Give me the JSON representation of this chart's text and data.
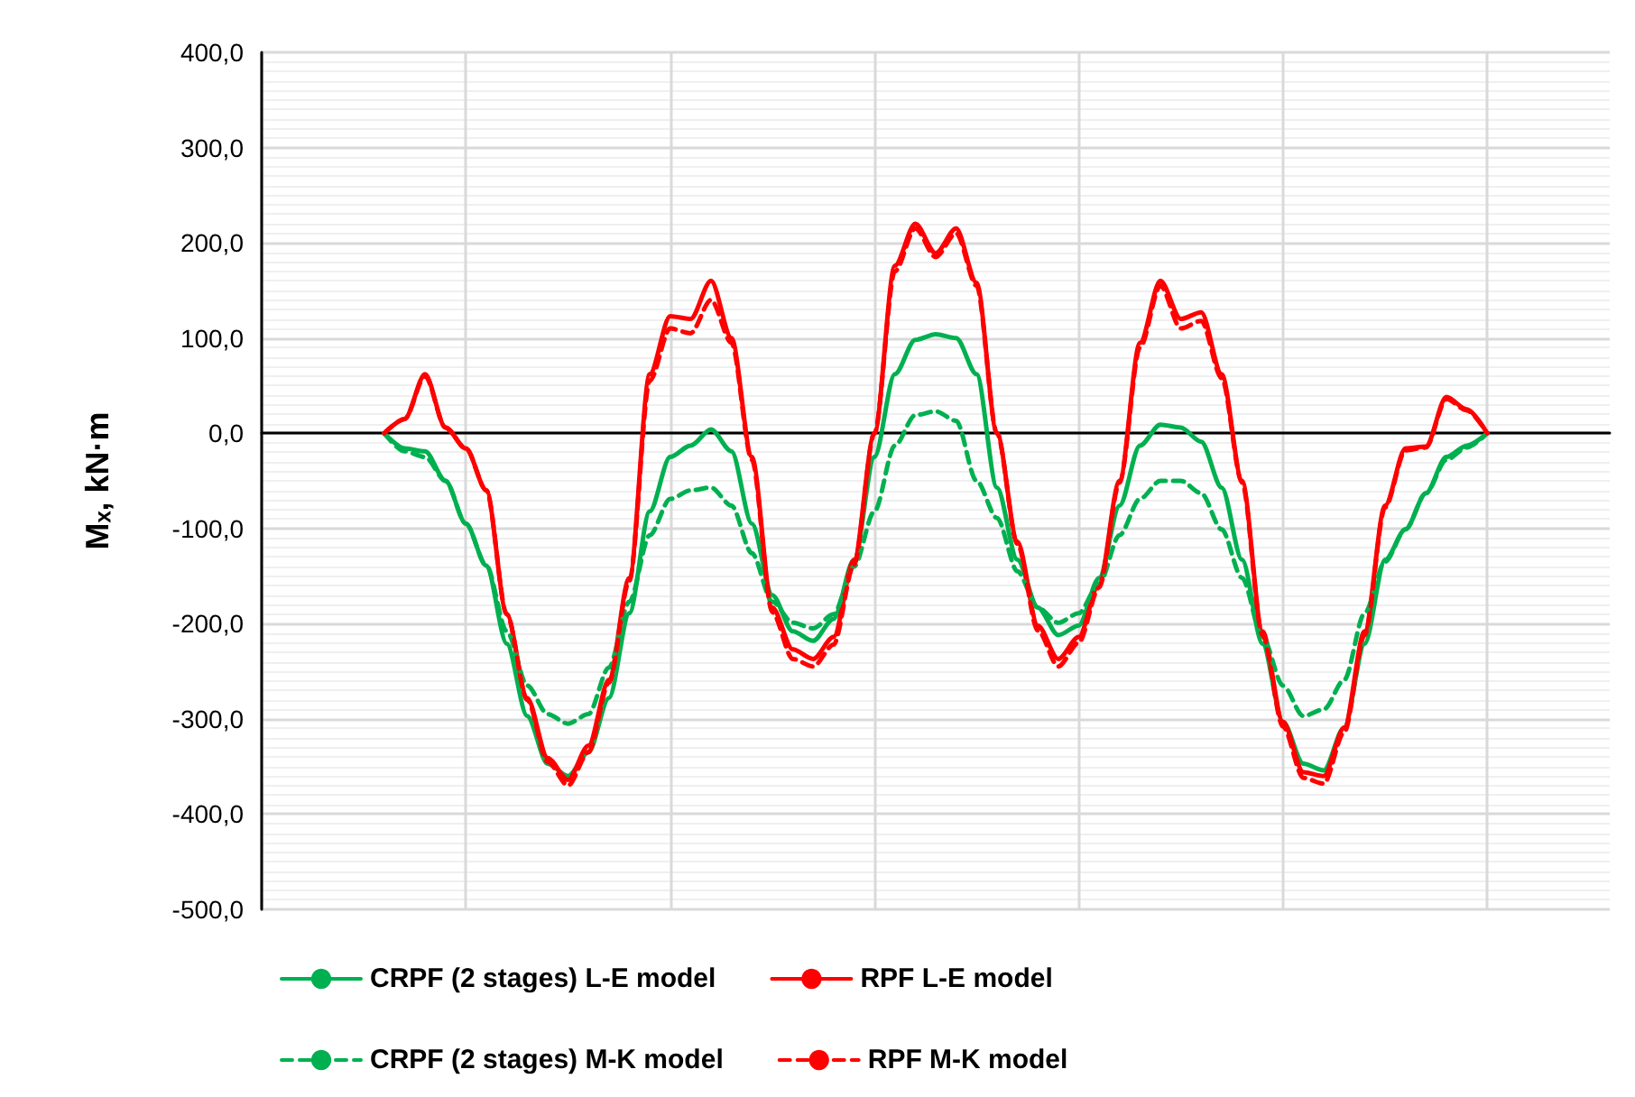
{
  "chart_data": {
    "type": "line",
    "ylabel": "Mₓ, kN·m",
    "categories": [
      null,
      null,
      null,
      null,
      null,
      null,
      null,
      null,
      null,
      null,
      null,
      null,
      null,
      null,
      null,
      null,
      null,
      null,
      null,
      null,
      null,
      null,
      null,
      null,
      null,
      null,
      null,
      null,
      null,
      null,
      null,
      null,
      null,
      null,
      null,
      null,
      null,
      null,
      null,
      null,
      null,
      null,
      null,
      null,
      null,
      null,
      null,
      null,
      null,
      null,
      null,
      null,
      null,
      null,
      null,
      null,
      null,
      null,
      null,
      null,
      null,
      null,
      null,
      null,
      null,
      null,
      null
    ],
    "ylim": [
      -500,
      400
    ],
    "yticks": [
      {
        "value": -500,
        "label": "-500,0"
      },
      {
        "value": -400,
        "label": "-400,0"
      },
      {
        "value": -300,
        "label": "-300,0"
      },
      {
        "value": -200,
        "label": "-200,0"
      },
      {
        "value": -100,
        "label": "-100,0"
      },
      {
        "value": 0,
        "label": "0,0"
      },
      {
        "value": 100,
        "label": "100,0"
      },
      {
        "value": 200,
        "label": "200,0"
      },
      {
        "value": 300,
        "label": "300,0"
      },
      {
        "value": 400,
        "label": "400,0"
      }
    ],
    "tick_labels": "y",
    "grid": true,
    "legend": "bottom",
    "marker": "none",
    "series": [
      {
        "name": "CRPF (2 stages) L-E model",
        "color": "#00b050",
        "line_style": "solid",
        "values": [
          null,
          null,
          null,
          null,
          null,
          null,
          0,
          -16,
          -19,
          -50,
          -95,
          -139,
          -221,
          -297,
          -347,
          -360,
          -335,
          -278,
          -189,
          -82,
          -25,
          -13,
          4,
          -19,
          -95,
          -170,
          -208,
          -218,
          -195,
          -133,
          -25,
          62,
          98,
          104,
          100,
          62,
          -57,
          -133,
          -183,
          -212,
          -202,
          -152,
          -76,
          -13,
          9,
          6,
          -9,
          -57,
          -133,
          -221,
          -303,
          -347,
          -354,
          -309,
          -221,
          -133,
          -101,
          -63,
          -25,
          -13,
          0,
          null,
          null,
          null,
          null,
          null,
          null
        ]
      },
      {
        "name": "RPF L-E model",
        "color": "#ff0000",
        "line_style": "solid",
        "values": [
          null,
          null,
          null,
          null,
          null,
          null,
          0,
          15,
          62,
          6,
          -16,
          -60,
          -190,
          -278,
          -341,
          -364,
          -328,
          -259,
          -152,
          62,
          123,
          120,
          160,
          100,
          -25,
          -183,
          -227,
          -237,
          -214,
          -133,
          0,
          176,
          220,
          189,
          215,
          158,
          0,
          -114,
          -202,
          -237,
          -214,
          -158,
          -50,
          95,
          160,
          120,
          127,
          62,
          -50,
          -208,
          -303,
          -356,
          -360,
          -309,
          -208,
          -76,
          -16,
          -14,
          38,
          25,
          0,
          null,
          null,
          null,
          null,
          null,
          null
        ]
      },
      {
        "name": "CRPF (2 stages) M-K model",
        "color": "#00b050",
        "line_style": "dashed",
        "values": [
          null,
          null,
          null,
          null,
          null,
          null,
          0,
          -19,
          -25,
          -50,
          -95,
          -139,
          -208,
          -265,
          -295,
          -305,
          -295,
          -246,
          -177,
          -107,
          -69,
          -60,
          -57,
          -76,
          -126,
          -177,
          -199,
          -205,
          -190,
          -140,
          -82,
          -13,
          19,
          23,
          13,
          -50,
          -89,
          -145,
          -183,
          -199,
          -189,
          -158,
          -107,
          -69,
          -50,
          -50,
          -63,
          -101,
          -152,
          -214,
          -265,
          -297,
          -290,
          -259,
          -189,
          -135,
          -101,
          -63,
          -28,
          -15,
          0,
          null,
          null,
          null,
          null,
          null,
          null
        ]
      },
      {
        "name": "RPF M-K model",
        "color": "#ff0000",
        "line_style": "dashed",
        "values": [
          null,
          null,
          null,
          null,
          null,
          null,
          0,
          15,
          60,
          6,
          -16,
          -60,
          -190,
          -280,
          -345,
          -370,
          -335,
          -262,
          -155,
          55,
          110,
          105,
          140,
          95,
          -28,
          -188,
          -237,
          -245,
          -222,
          -138,
          0,
          170,
          215,
          185,
          210,
          155,
          0,
          -116,
          -207,
          -245,
          -220,
          -162,
          -52,
          90,
          155,
          110,
          118,
          58,
          -52,
          -212,
          -308,
          -362,
          -368,
          -314,
          -212,
          -78,
          -18,
          -15,
          36,
          24,
          0,
          null,
          null,
          null,
          null,
          null,
          null
        ]
      }
    ]
  }
}
